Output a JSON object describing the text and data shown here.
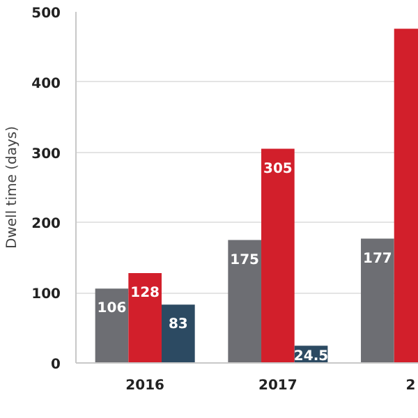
{
  "chart_data": {
    "type": "bar",
    "ylabel": "Dwell time (days)",
    "categories": [
      "2016",
      "2017",
      "2"
    ],
    "series": [
      {
        "color": "#6d6e73",
        "values": [
          106,
          175,
          177
        ],
        "value_labels": [
          "106",
          "175",
          "177"
        ]
      },
      {
        "color": "#d21f2b",
        "values": [
          128,
          305,
          476
        ],
        "value_labels": [
          "128",
          "305",
          null
        ]
      },
      {
        "color": "#2c4a62",
        "values": [
          83,
          24.5,
          null
        ],
        "value_labels": [
          "83",
          "24.5",
          null
        ]
      }
    ],
    "ylim": [
      0,
      500
    ],
    "yticks": [
      0,
      100,
      200,
      300,
      400,
      500
    ],
    "grid": "y"
  }
}
